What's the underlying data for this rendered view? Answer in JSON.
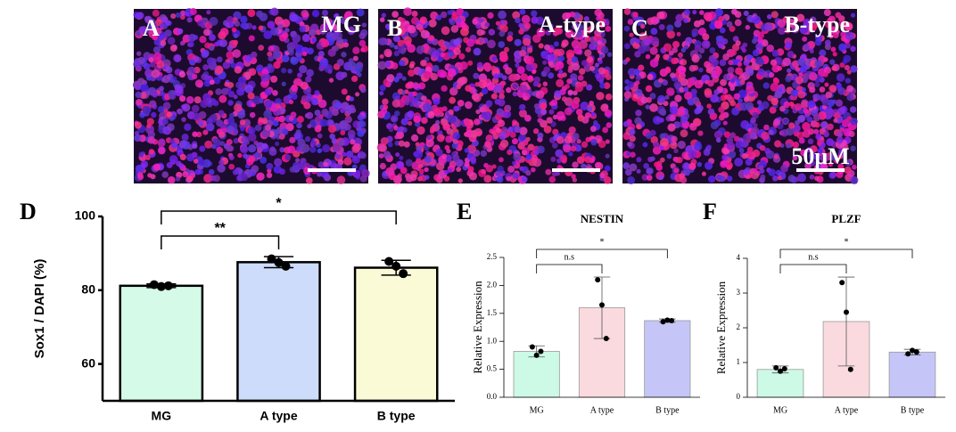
{
  "panels": [
    {
      "letter": "A",
      "label": "MG"
    },
    {
      "letter": "B",
      "label": "A-type"
    },
    {
      "letter": "C",
      "label": "B-type",
      "scale_label": "50μM"
    }
  ],
  "chart_data": [
    {
      "type": "bar",
      "letter": "D",
      "y_label": "Sox1 / DAPI (%)",
      "categories": [
        "MG",
        "A type",
        "B type"
      ],
      "values": [
        81.2,
        87.6,
        86.1
      ],
      "errors": [
        0.5,
        1.5,
        2.0
      ],
      "points": [
        [
          81.5,
          81.0,
          81.2
        ],
        [
          88.5,
          87.5,
          86.5
        ],
        [
          87.8,
          86.5,
          84.5
        ]
      ],
      "colors": [
        "#d5fae8",
        "#cddcfa",
        "#fafad6"
      ],
      "ylim": [
        50,
        100
      ],
      "yticks": [
        60,
        80,
        100
      ],
      "comparisons": [
        {
          "label": "**",
          "categories": [
            "MG",
            "A type"
          ]
        },
        {
          "label": "*",
          "categories": [
            "MG",
            "B type"
          ]
        }
      ]
    },
    {
      "type": "bar",
      "letter": "E",
      "title": "NESTIN",
      "y_label": "Relative  Expression",
      "categories": [
        "MG",
        "A type",
        "B type"
      ],
      "values": [
        0.82,
        1.6,
        1.37
      ],
      "errors": [
        0.1,
        0.55,
        0.03
      ],
      "points": [
        [
          0.9,
          0.75,
          0.82
        ],
        [
          2.1,
          1.65,
          1.05
        ],
        [
          1.35,
          1.38,
          1.37
        ]
      ],
      "colors": [
        "#ccfae6",
        "#fadadf",
        "#c5c5f8"
      ],
      "ylim": [
        0,
        2.5
      ],
      "yticks": [
        {
          "value": 0,
          "label": "0.0"
        },
        0.5,
        {
          "value": 1,
          "label": "1.0"
        },
        1.5,
        {
          "value": 2,
          "label": "2.0"
        },
        2.5
      ],
      "comparisons": [
        {
          "label": "n.s",
          "categories": [
            "MG",
            "A type"
          ]
        },
        {
          "label": "*",
          "categories": [
            "MG",
            "B type"
          ]
        }
      ]
    },
    {
      "type": "bar",
      "letter": "F",
      "title": "PLZF",
      "y_label": "Relative  Expression",
      "categories": [
        "MG",
        "A type",
        "B type"
      ],
      "values": [
        0.8,
        2.18,
        1.3
      ],
      "errors": [
        0.1,
        1.28,
        0.08
      ],
      "points": [
        [
          0.85,
          0.75,
          0.82
        ],
        [
          3.3,
          2.45,
          0.8
        ],
        [
          1.25,
          1.35,
          1.3
        ]
      ],
      "colors": [
        "#ccfae6",
        "#fadadf",
        "#c5c5f8"
      ],
      "ylim": [
        0,
        4
      ],
      "yticks": [
        0,
        1,
        2,
        3,
        4
      ],
      "comparisons": [
        {
          "label": "n.s",
          "categories": [
            "MG",
            "A type"
          ]
        },
        {
          "label": "*",
          "categories": [
            "MG",
            "B type"
          ]
        }
      ]
    }
  ]
}
